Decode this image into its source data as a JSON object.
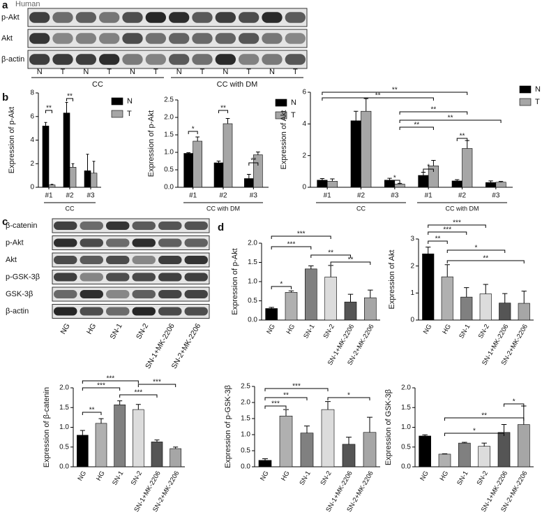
{
  "figure": {
    "panel_labels": [
      "a",
      "b",
      "c",
      "d"
    ],
    "blot_a": {
      "title": "Human",
      "rows": [
        "p-Akt",
        "Akt",
        "β-actin"
      ],
      "lanes": [
        "N",
        "T",
        "N",
        "T",
        "N",
        "T",
        "N",
        "T",
        "N",
        "T",
        "N",
        "T"
      ],
      "groups": [
        "CC",
        "CC with DM"
      ]
    },
    "blot_c": {
      "rows": [
        "β-catenin",
        "p-Akt",
        "Akt",
        "p-GSK-3β",
        "GSK-3β",
        "β-actin"
      ],
      "lanes": [
        "NG",
        "HG",
        "SN-1",
        "SN-2",
        "SN-1+MK-2206",
        "SN-2+MK-2206"
      ]
    }
  },
  "chart_data": [
    {
      "type": "bar",
      "y_label": "Expression of p-Akt",
      "categories": [
        "#1",
        "#2",
        "#3"
      ],
      "groups": [
        "CC"
      ],
      "series": [
        {
          "name": "N",
          "color": "#000000",
          "values": [
            5.2,
            6.3,
            1.4
          ],
          "errors": [
            0.3,
            0.9,
            1.4
          ]
        },
        {
          "name": "T",
          "color": "#a6a6a6",
          "values": [
            0.2,
            1.7,
            1.2
          ],
          "errors": [
            0.05,
            0.3,
            1.0
          ]
        }
      ],
      "ylim": [
        0,
        8
      ],
      "yticks": [
        0,
        2,
        4,
        6,
        8
      ],
      "significance": [
        "**",
        "**"
      ]
    },
    {
      "type": "bar",
      "y_label": "Expression of p-Akt",
      "categories": [
        "#1",
        "#2",
        "#3"
      ],
      "groups": [
        "CC with DM"
      ],
      "series": [
        {
          "name": "N",
          "color": "#000000",
          "values": [
            0.97,
            0.7,
            0.25
          ],
          "errors": [
            0.02,
            0.05,
            0.12
          ]
        },
        {
          "name": "T",
          "color": "#a6a6a6",
          "values": [
            1.32,
            1.82,
            0.93
          ],
          "errors": [
            0.12,
            0.15,
            0.08
          ]
        }
      ],
      "ylim": [
        0,
        2.5
      ],
      "yticks": [
        {
          "value": 0,
          "label": "0.0"
        },
        {
          "value": 0.5,
          "label": "0.5"
        },
        {
          "value": 1,
          "label": "1.0"
        },
        {
          "value": 1.5,
          "label": "1.5"
        },
        {
          "value": 2,
          "label": "2.0"
        },
        {
          "value": 2.5,
          "label": "2.5"
        }
      ],
      "significance": [
        "*",
        "**",
        "**"
      ]
    },
    {
      "type": "bar",
      "y_label": "Expression of Akt",
      "categories": [
        "#1",
        "#2",
        "#3",
        "#1",
        "#2",
        "#3"
      ],
      "groups": [
        "CC",
        "CC with DM"
      ],
      "series": [
        {
          "name": "N",
          "color": "#000000",
          "values": [
            0.45,
            4.2,
            0.45,
            0.75,
            0.4,
            0.3
          ],
          "errors": [
            0.1,
            0.6,
            0.12,
            0.2,
            0.08,
            0.1
          ]
        },
        {
          "name": "T",
          "color": "#a6a6a6",
          "values": [
            0.38,
            4.8,
            0.2,
            1.35,
            2.45,
            0.32
          ],
          "errors": [
            0.15,
            0.8,
            0.05,
            0.35,
            0.5,
            0.05
          ]
        }
      ],
      "ylim": [
        0,
        6
      ],
      "yticks": [
        0,
        2,
        4,
        6
      ],
      "significance": [
        "**",
        "**",
        "*",
        "**",
        "**",
        "**",
        "*",
        "**"
      ]
    },
    {
      "type": "bar",
      "y_label": "Expression of p-Akt",
      "categories": [
        "NG",
        "HG",
        "SN-1",
        "SN-2",
        "SN-1+MK-2206",
        "SN-2+MK-2206"
      ],
      "values": [
        0.3,
        0.72,
        1.33,
        1.12,
        0.47,
        0.58
      ],
      "errors": [
        0.03,
        0.04,
        0.08,
        0.3,
        0.2,
        0.2
      ],
      "colors": [
        "#000000",
        "#b0b0b0",
        "#808080",
        "#dcdcdc",
        "#555555",
        "#a6a6a6"
      ],
      "ylim": [
        0,
        2
      ],
      "yticks": [
        {
          "value": 0,
          "label": "0.0"
        },
        {
          "value": 0.5,
          "label": "0.5"
        },
        {
          "value": 1,
          "label": "1.0"
        },
        {
          "value": 1.5,
          "label": "1.5"
        },
        {
          "value": 2,
          "label": "2.0"
        }
      ],
      "significance": [
        "***",
        "***",
        "**",
        "**",
        "*"
      ]
    },
    {
      "type": "bar",
      "y_label": "Expression of Akt",
      "categories": [
        "NG",
        "HG",
        "SN-1",
        "SN-2",
        "SN-1+MK-2206",
        "SN-2+MK-2206"
      ],
      "values": [
        2.45,
        1.6,
        0.85,
        0.97,
        0.63,
        0.62
      ],
      "errors": [
        0.25,
        0.45,
        0.35,
        0.35,
        0.35,
        0.45
      ],
      "colors": [
        "#000000",
        "#b0b0b0",
        "#808080",
        "#dcdcdc",
        "#555555",
        "#a6a6a6"
      ],
      "ylim": [
        0,
        3
      ],
      "yticks": [
        0,
        1,
        2,
        3
      ],
      "significance": [
        "***",
        "***",
        "**",
        "*",
        "**"
      ]
    },
    {
      "type": "bar",
      "y_label": "Expression of β-catenin",
      "categories": [
        "NG",
        "HG",
        "SN-1",
        "SN-2",
        "SN-1+MK-2206",
        "SN-2+MK-2206"
      ],
      "values": [
        0.8,
        1.1,
        1.57,
        1.45,
        0.63,
        0.46
      ],
      "errors": [
        0.12,
        0.12,
        0.1,
        0.13,
        0.05,
        0.04
      ],
      "colors": [
        "#000000",
        "#b0b0b0",
        "#808080",
        "#dcdcdc",
        "#555555",
        "#a6a6a6"
      ],
      "ylim": [
        0,
        2
      ],
      "yticks": [
        {
          "value": 0,
          "label": "0.0"
        },
        {
          "value": 0.5,
          "label": "0.5"
        },
        {
          "value": 1,
          "label": "1.0"
        },
        {
          "value": 1.5,
          "label": "1.5"
        },
        {
          "value": 2,
          "label": "2.0"
        }
      ],
      "significance": [
        "***",
        "***",
        "***",
        "***",
        "**"
      ]
    },
    {
      "type": "bar",
      "y_label": "Expression of p-GSK-3β",
      "categories": [
        "NG",
        "HG",
        "SN-1",
        "SN-2",
        "SN-1+MK-2206",
        "SN-2+MK-2206"
      ],
      "values": [
        0.2,
        1.58,
        1.05,
        1.78,
        0.7,
        1.07
      ],
      "errors": [
        0.05,
        0.2,
        0.22,
        0.25,
        0.22,
        0.47
      ],
      "colors": [
        "#000000",
        "#b0b0b0",
        "#808080",
        "#dcdcdc",
        "#555555",
        "#a6a6a6"
      ],
      "ylim": [
        0,
        2.5
      ],
      "yticks": [
        {
          "value": 0,
          "label": "0.0"
        },
        {
          "value": 0.5,
          "label": "0.5"
        },
        {
          "value": 1,
          "label": "1.0"
        },
        {
          "value": 1.5,
          "label": "1.5"
        },
        {
          "value": 2,
          "label": "2.0"
        },
        {
          "value": 2.5,
          "label": "2.5"
        }
      ],
      "significance": [
        "***",
        "**",
        "***",
        "*"
      ]
    },
    {
      "type": "bar",
      "y_label": "Expression of GSK-3β",
      "categories": [
        "NG",
        "HG",
        "SN-1",
        "SN-2",
        "SN-1+MK-2206",
        "SN-2+MK-2206"
      ],
      "values": [
        0.78,
        0.32,
        0.6,
        0.52,
        0.87,
        1.07
      ],
      "errors": [
        0.03,
        0.01,
        0.02,
        0.08,
        0.2,
        0.47
      ],
      "colors": [
        "#000000",
        "#b0b0b0",
        "#808080",
        "#dcdcdc",
        "#555555",
        "#a6a6a6"
      ],
      "ylim": [
        0,
        2
      ],
      "yticks": [
        {
          "value": 0,
          "label": "0.0"
        },
        {
          "value": 0.5,
          "label": "0.5"
        },
        {
          "value": 1,
          "label": "1.0"
        },
        {
          "value": 1.5,
          "label": "1.5"
        },
        {
          "value": 2,
          "label": "2.0"
        }
      ],
      "significance": [
        "*",
        "**",
        "*"
      ]
    }
  ]
}
